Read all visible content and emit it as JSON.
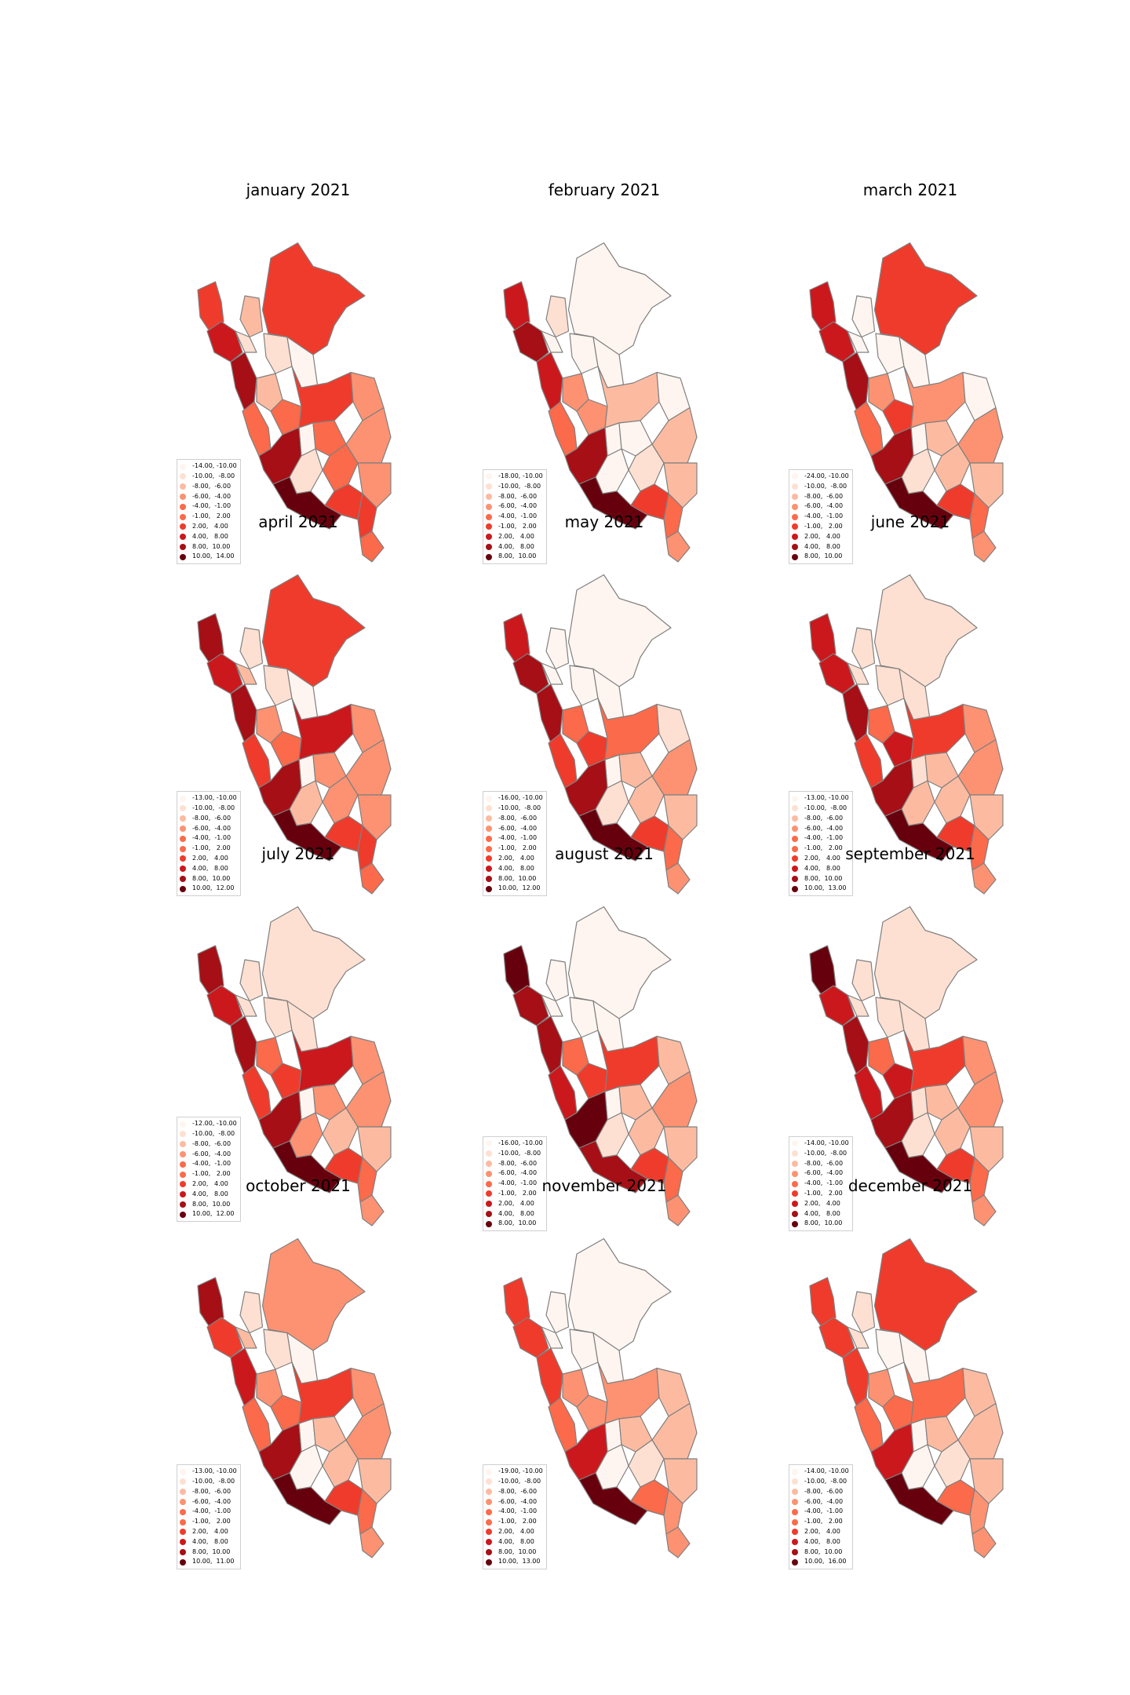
{
  "palette": [
    "#fff5f0",
    "#fee0d2",
    "#fcbba1",
    "#fc9272",
    "#fb6a4a",
    "#ef3b2c",
    "#cb181d",
    "#a50f15",
    "#67000d"
  ],
  "outline_color": "#808080",
  "maps": [
    {
      "title": "january 2021",
      "legend": [
        "-14.00, -10.00",
        "-10.00,  -8.00",
        "-8.00,  -6.00",
        "-6.00,  -4.00",
        "-4.00,  -1.00",
        "-1.00,   2.00",
        "2.00,   4.00",
        "4.00,   8.00",
        "8.00,  10.00",
        "10.00,  14.00"
      ],
      "fills": [
        5,
        6,
        7,
        4,
        5,
        2,
        1,
        1,
        0,
        2,
        4,
        5,
        3,
        0,
        7,
        1,
        4,
        8,
        4,
        5,
        3,
        5,
        3,
        4
      ]
    },
    {
      "title": "february 2021",
      "legend": [
        "-18.00, -10.00",
        "-10.00,  -8.00",
        "-8.00,  -6.00",
        "-6.00,  -4.00",
        "-4.00,  -1.00",
        "-1.00,   2.00",
        "2.00,   4.00",
        "4.00,   8.00",
        "8.00,  10.00"
      ],
      "fills": [
        6,
        7,
        6,
        4,
        0,
        1,
        0,
        0,
        0,
        3,
        3,
        2,
        0,
        0,
        7,
        0,
        0,
        8,
        1,
        5,
        2,
        4,
        2,
        3
      ]
    },
    {
      "title": "march 2021",
      "legend": [
        "-24.00, -10.00",
        "-10.00,  -8.00",
        "-8.00,  -6.00",
        "-6.00,  -4.00",
        "-4.00,  -1.00",
        "-1.00,   2.00",
        "2.00,   4.00",
        "4.00,   8.00",
        "8.00,  10.00"
      ],
      "fills": [
        6,
        6,
        7,
        4,
        5,
        0,
        0,
        0,
        0,
        3,
        5,
        3,
        0,
        0,
        7,
        1,
        2,
        8,
        2,
        5,
        3,
        4,
        2,
        3
      ]
    },
    {
      "title": "april 2021",
      "legend": [
        "-13.00, -10.00",
        "-10.00,  -8.00",
        "-8.00,  -6.00",
        "-6.00,  -4.00",
        "-4.00,  -1.00",
        "-1.00,   2.00",
        "2.00,   4.00",
        "4.00,   8.00",
        "8.00,  10.00",
        "10.00,  12.00"
      ],
      "fills": [
        7,
        6,
        7,
        5,
        5,
        1,
        2,
        1,
        0,
        3,
        4,
        6,
        3,
        0,
        7,
        2,
        3,
        8,
        3,
        5,
        3,
        5,
        3,
        4
      ]
    },
    {
      "title": "may 2021",
      "legend": [
        "-16.00, -10.00",
        "-10.00,  -8.00",
        "-8.00,  -6.00",
        "-6.00,  -4.00",
        "-4.00,  -1.00",
        "-1.00,   2.00",
        "2.00,   4.00",
        "4.00,   8.00",
        "8.00,  10.00",
        "10.00,  12.00"
      ],
      "fills": [
        6,
        7,
        7,
        5,
        0,
        0,
        0,
        0,
        0,
        4,
        5,
        4,
        1,
        0,
        7,
        1,
        2,
        8,
        2,
        5,
        3,
        4,
        2,
        3
      ]
    },
    {
      "title": "june 2021",
      "legend": [
        "-13.00, -10.00",
        "-10.00,  -8.00",
        "-8.00,  -6.00",
        "-6.00,  -4.00",
        "-4.00,  -1.00",
        "-1.00,   2.00",
        "2.00,   4.00",
        "4.00,   8.00",
        "8.00,  10.00",
        "10.00,  13.00"
      ],
      "fills": [
        6,
        6,
        7,
        5,
        1,
        1,
        1,
        1,
        1,
        4,
        6,
        5,
        3,
        1,
        7,
        2,
        2,
        8,
        2,
        5,
        3,
        4,
        2,
        3
      ]
    },
    {
      "title": "july 2021",
      "legend": [
        "-12.00, -10.00",
        "-10.00,  -8.00",
        "-8.00,  -6.00",
        "-6.00,  -4.00",
        "-4.00,  -1.00",
        "-1.00,   2.00",
        "2.00,   4.00",
        "4.00,   8.00",
        "8.00,  10.00",
        "10.00,  12.00"
      ],
      "fills": [
        7,
        6,
        7,
        5,
        1,
        1,
        1,
        1,
        1,
        4,
        5,
        6,
        3,
        0,
        7,
        3,
        3,
        8,
        2,
        5,
        3,
        4,
        2,
        3
      ]
    },
    {
      "title": "august 2021",
      "legend": [
        "-16.00, -10.00",
        "-10.00,  -8.00",
        "-8.00,  -6.00",
        "-6.00,  -4.00",
        "-4.00,  -1.00",
        "-1.00,   2.00",
        "2.00,   4.00",
        "4.00,   8.00",
        "8.00,  10.00"
      ],
      "fills": [
        8,
        7,
        7,
        6,
        0,
        0,
        0,
        0,
        0,
        4,
        5,
        5,
        2,
        0,
        8,
        1,
        2,
        7,
        2,
        5,
        3,
        4,
        2,
        3
      ]
    },
    {
      "title": "september 2021",
      "legend": [
        "-14.00, -10.00",
        "-10.00,  -8.00",
        "-8.00,  -6.00",
        "-6.00,  -4.00",
        "-4.00,  -1.00",
        "-1.00,   2.00",
        "2.00,   4.00",
        "4.00,   8.00",
        "8.00,  10.00"
      ],
      "fills": [
        8,
        6,
        7,
        6,
        1,
        1,
        1,
        1,
        1,
        4,
        6,
        5,
        3,
        1,
        7,
        1,
        2,
        8,
        2,
        5,
        3,
        4,
        2,
        3
      ]
    },
    {
      "title": "october 2021",
      "legend": [
        "-13.00, -10.00",
        "-10.00,  -8.00",
        "-8.00,  -6.00",
        "-6.00,  -4.00",
        "-4.00,  -1.00",
        "-1.00,   2.00",
        "2.00,   4.00",
        "4.00,   8.00",
        "8.00,  10.00",
        "10.00,  11.00"
      ],
      "fills": [
        7,
        5,
        6,
        4,
        3,
        1,
        2,
        1,
        0,
        3,
        4,
        5,
        3,
        0,
        7,
        0,
        2,
        8,
        2,
        5,
        3,
        4,
        2,
        3
      ]
    },
    {
      "title": "november 2021",
      "legend": [
        "-19.00, -10.00",
        "-10.00,  -8.00",
        "-8.00,  -6.00",
        "-6.00,  -4.00",
        "-4.00,  -1.00",
        "-1.00,   2.00",
        "2.00,   4.00",
        "4.00,   8.00",
        "8.00,  10.00",
        "10.00,  13.00"
      ],
      "fills": [
        5,
        5,
        5,
        4,
        0,
        0,
        0,
        0,
        0,
        3,
        3,
        3,
        2,
        0,
        6,
        0,
        2,
        8,
        1,
        4,
        2,
        3,
        2,
        3
      ]
    },
    {
      "title": "december 2021",
      "legend": [
        "-14.00, -10.00",
        "-10.00,  -8.00",
        "-8.00,  -6.00",
        "-6.00,  -4.00",
        "-4.00,  -1.00",
        "-1.00,   2.00",
        "2.00,   4.00",
        "4.00,   8.00",
        "8.00,  10.00",
        "10.00,  16.00"
      ],
      "fills": [
        5,
        5,
        5,
        4,
        5,
        1,
        1,
        0,
        0,
        3,
        4,
        4,
        2,
        0,
        6,
        0,
        2,
        8,
        1,
        4,
        2,
        3,
        2,
        3
      ]
    }
  ]
}
